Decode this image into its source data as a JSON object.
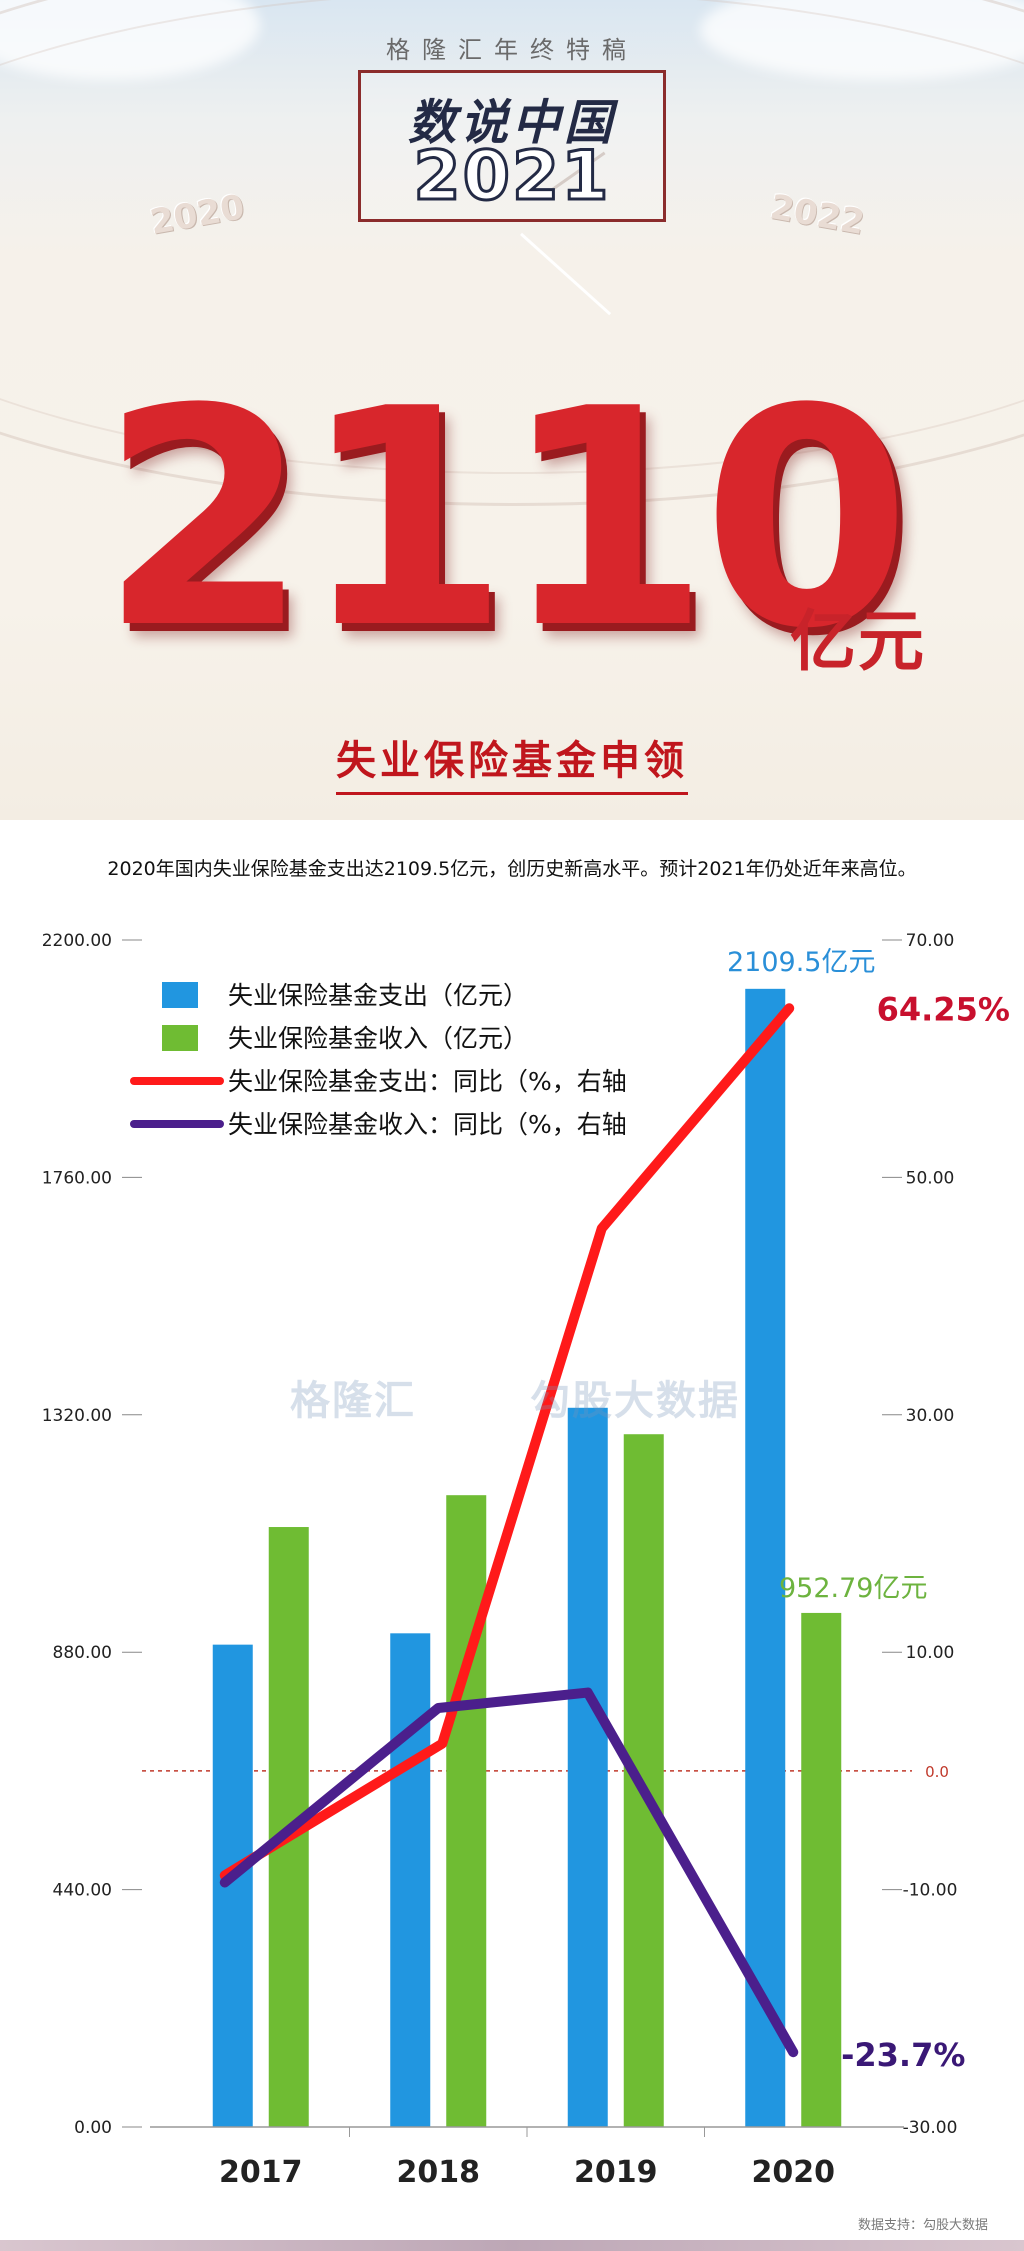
{
  "header": {
    "kicker": "格隆汇年终特稿",
    "badge_title": "数说中国",
    "badge_year": "2021",
    "year_left": "2020",
    "year_right": "2022",
    "big_number": "2110",
    "big_unit": "亿元",
    "subtitle": "失业保险基金申领"
  },
  "note": "2020年国内失业保险基金支出达2109.5亿元，创历史新高水平。预计2021年仍处近年来高位。",
  "watermark": {
    "left": "格隆汇",
    "right": "勾股大数据"
  },
  "footer": "数据支持：勾股大数据",
  "colors": {
    "bar_expense": "#2196e0",
    "bar_income": "#6fbc33",
    "line_expense": "#ff1a1a",
    "line_income": "#4b1f8c",
    "label_expense": "#2a8fd8",
    "label_income": "#6db33f",
    "label_line_expense": "#c8102e",
    "label_line_income": "#3a1876",
    "zero_line": "#c0392b"
  },
  "chart_data": {
    "type": "bar",
    "categories": [
      "2017",
      "2018",
      "2019",
      "2020"
    ],
    "series": [
      {
        "name": "失业保险基金支出（亿元）",
        "type": "bar",
        "axis": "left",
        "values": [
          894,
          915,
          1333,
          2109.5
        ]
      },
      {
        "name": "失业保险基金收入（亿元）",
        "type": "bar",
        "axis": "left",
        "values": [
          1112,
          1171,
          1284,
          952.79
        ]
      },
      {
        "name": "失业保险基金支出：同比（%，右轴",
        "type": "line",
        "axis": "right",
        "values": [
          -8.8,
          2.3,
          45.7,
          64.25
        ]
      },
      {
        "name": "失业保险基金收入：同比（%，右轴",
        "type": "line",
        "axis": "right",
        "values": [
          -9.4,
          5.3,
          6.6,
          -23.7
        ]
      }
    ],
    "left_axis": {
      "ylim": [
        0,
        2200
      ],
      "ticks": [
        "0.00",
        "440.00",
        "880.00",
        "1320.00",
        "1760.00",
        "2200.00"
      ]
    },
    "right_axis": {
      "ylim": [
        -30,
        70
      ],
      "ticks": [
        "-30.00",
        "-10.00",
        "0.0",
        "10.00",
        "30.00",
        "50.00",
        "70.00"
      ],
      "tick_values": [
        -30,
        -10,
        0,
        10,
        30,
        50,
        70
      ]
    },
    "annotations": {
      "bar_expense_2020": "2109.5亿元",
      "bar_income_2020": "952.79亿元",
      "line_expense_2020": "64.25%",
      "line_income_2020": "-23.7%"
    },
    "legend_position": "top-left",
    "grid": false
  }
}
